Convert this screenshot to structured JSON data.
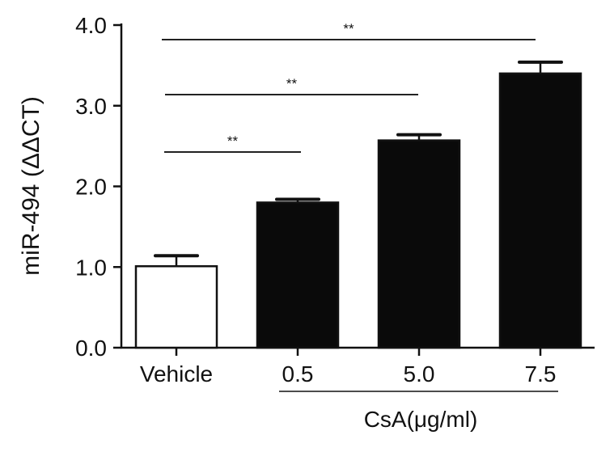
{
  "chart_data": {
    "type": "bar",
    "title": "",
    "xlabel": "",
    "ylabel": "miR-494 (ΔΔCT)",
    "categories": [
      "Vehicle",
      "0.5",
      "5.0",
      "7.5"
    ],
    "values": [
      1.01,
      1.8,
      2.57,
      3.4
    ],
    "error": [
      0.13,
      0.04,
      0.07,
      0.14
    ],
    "fill_colors": [
      "#ffffff",
      "#0a0a0a",
      "#0a0a0a",
      "#0a0a0a"
    ],
    "ylim": [
      0,
      4
    ],
    "yticks": [
      "0.0",
      "1.0",
      "2.0",
      "3.0",
      "4.0"
    ],
    "group_label": "CsA(μg/ml)",
    "significance": [
      {
        "from": 0,
        "to": 1,
        "label": "**"
      },
      {
        "from": 0,
        "to": 2,
        "label": "**"
      },
      {
        "from": 0,
        "to": 3,
        "label": "**"
      }
    ],
    "grid": false,
    "legend": "none"
  }
}
